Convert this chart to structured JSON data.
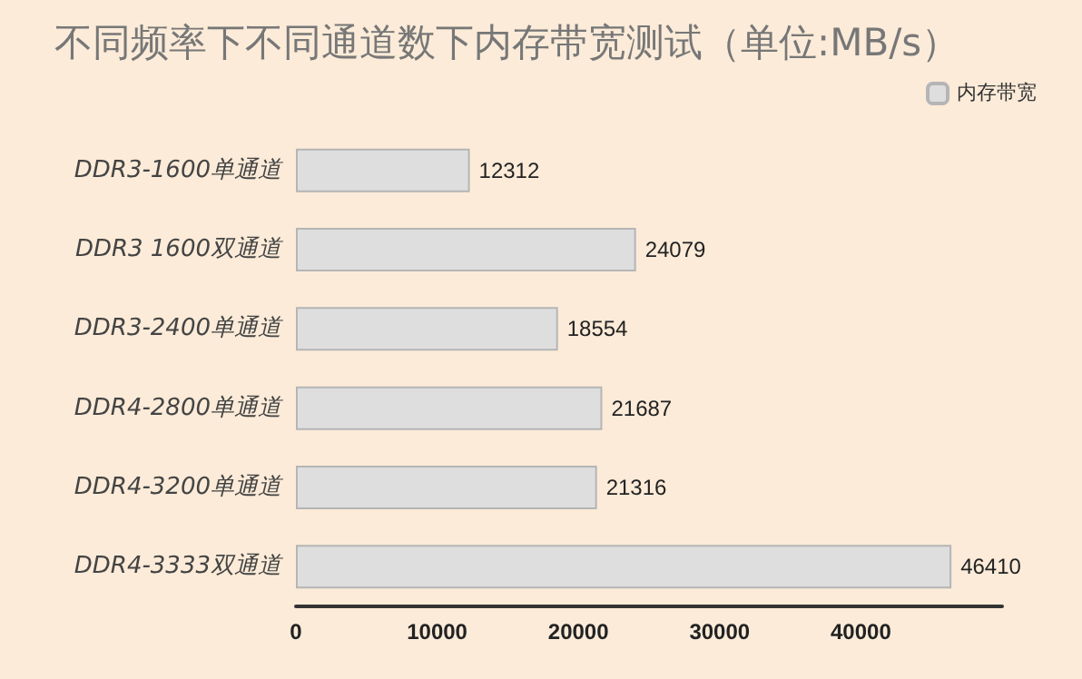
{
  "chart_data": {
    "type": "bar",
    "orientation": "horizontal",
    "title": "不同频率下不同通道数下内存带宽测试（单位:MB/s）",
    "categories": [
      "DDR3-1600单通道",
      "DDR3 1600双通道",
      "DDR3-2400单通道",
      "DDR4-2800单通道",
      "DDR4-3200单通道",
      "DDR4-3333双通道"
    ],
    "series": [
      {
        "name": "内存带宽",
        "color": "#dedede",
        "values": [
          12312,
          24079,
          18554,
          21687,
          21316,
          46410
        ]
      }
    ],
    "xlim": [
      0,
      50000
    ],
    "xticks": [
      0,
      10000,
      20000,
      30000,
      40000
    ],
    "data_labels": true,
    "legend": "top right",
    "grid": false
  }
}
